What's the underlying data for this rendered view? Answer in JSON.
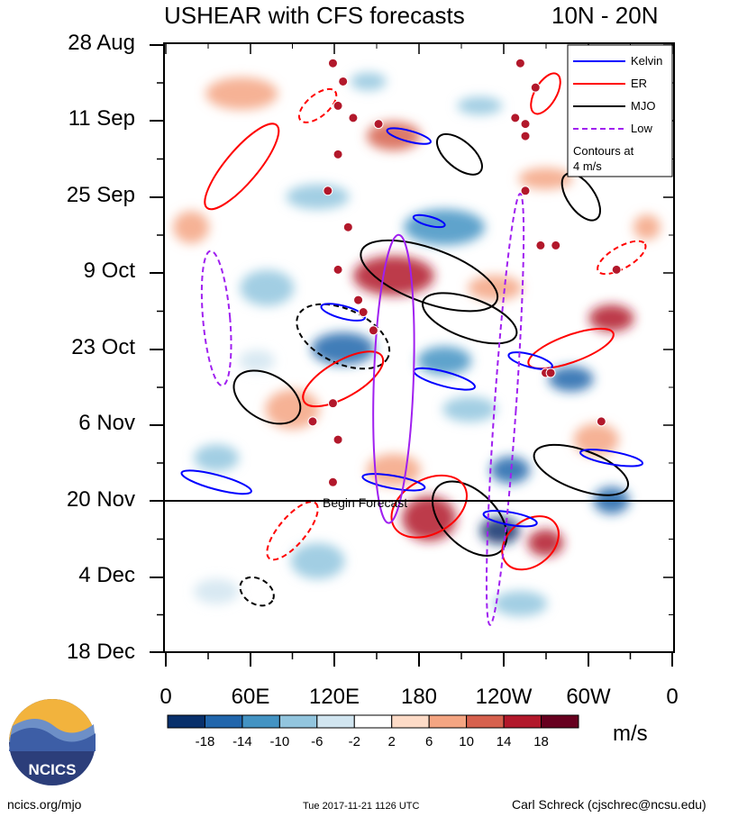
{
  "header": {
    "title": "USHEAR with CFS forecasts",
    "region": "10N - 20N"
  },
  "chart_data": {
    "type": "heatmap",
    "title": "USHEAR with CFS forecasts",
    "subtitle": "10N - 20N",
    "y_ticks": [
      "28 Aug",
      "11 Sep",
      "25 Sep",
      "9 Oct",
      "23 Oct",
      "6 Nov",
      "20 Nov",
      "4 Dec",
      "18 Dec"
    ],
    "x_ticks": [
      "0",
      "60E",
      "120E",
      "180",
      "120W",
      "60W",
      "0"
    ],
    "x_lon_range": [
      0,
      360
    ],
    "begin_forecast_label": "Begin Forecast",
    "begin_forecast_date": "20 Nov",
    "colorbar": {
      "levels": [
        -18,
        -14,
        -10,
        -6,
        -2,
        2,
        6,
        10,
        14,
        18
      ],
      "level_labels": [
        "-18",
        "-14",
        "-10",
        "-6",
        "-2",
        "2",
        "6",
        "10",
        "14",
        "18"
      ],
      "colors": [
        "#08306b",
        "#2166ac",
        "#4393c3",
        "#92c5de",
        "#d1e5f0",
        "#ffffff",
        "#fddbc7",
        "#f4a582",
        "#d6604d",
        "#b2182b",
        "#67001f"
      ],
      "units": "m/s"
    },
    "legend": {
      "placement": "top-right",
      "entries": [
        {
          "label": "Kelvin",
          "color": "#0000ff",
          "style": "solid"
        },
        {
          "label": "ER",
          "color": "#ff0000",
          "style": "solid"
        },
        {
          "label": "MJO",
          "color": "#000000",
          "style": "solid"
        },
        {
          "label": "Low",
          "color": "#a020f0",
          "style": "dashed"
        }
      ],
      "note_line1": "Contours at",
      "note_line2": "4 m/s"
    }
  },
  "logo": {
    "text": "NCICS"
  },
  "footer": {
    "left": "ncics.org/mjo",
    "center": "Tue 2017-11-21 1126 UTC",
    "right": "Carl Schreck (cjschrec@ncsu.edu)"
  }
}
